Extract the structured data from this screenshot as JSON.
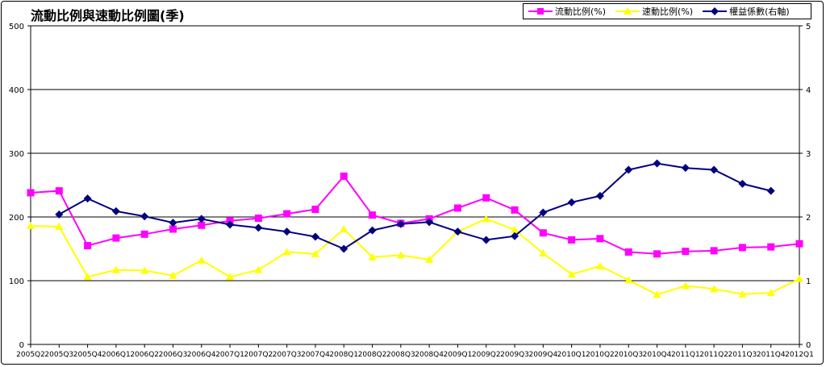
{
  "chart_data": {
    "type": "line",
    "title": "流動比例與速動比例圖(季)",
    "categories": [
      "2005Q2",
      "2005Q3",
      "2005Q4",
      "2006Q1",
      "2006Q2",
      "2006Q3",
      "2006Q4",
      "2007Q1",
      "2007Q2",
      "2007Q3",
      "2007Q4",
      "2008Q1",
      "2008Q2",
      "2008Q3",
      "2008Q4",
      "2009Q1",
      "2009Q2",
      "2009Q3",
      "2009Q4",
      "2010Q1",
      "2010Q2",
      "2010Q3",
      "2010Q4",
      "2011Q1",
      "2011Q2",
      "2011Q3",
      "2011Q4",
      "2012Q1"
    ],
    "y_left": {
      "min": 0,
      "max": 500,
      "ticks": [
        "0",
        "100",
        "200",
        "300",
        "400",
        "500"
      ]
    },
    "y_right": {
      "min": 0,
      "max": 5,
      "ticks": [
        "0",
        "1",
        "2",
        "3",
        "4",
        "5"
      ]
    },
    "grid": true,
    "legend_position": "top-right",
    "series": [
      {
        "name": "流動比例(%)",
        "axis": "left",
        "color": "#ff00ff",
        "marker": "square",
        "values": [
          238,
          241,
          155,
          167,
          173,
          181,
          187,
          194,
          198,
          205,
          212,
          264,
          203,
          190,
          197,
          214,
          230,
          211,
          175,
          164,
          166,
          145,
          142,
          146,
          147,
          152,
          153,
          158
        ]
      },
      {
        "name": "速動比例(%)",
        "axis": "left",
        "color": "#ffff00",
        "marker": "triangle",
        "values": [
          186,
          185,
          106,
          117,
          116,
          108,
          132,
          106,
          117,
          145,
          142,
          181,
          137,
          140,
          133,
          177,
          197,
          180,
          143,
          110,
          123,
          101,
          78,
          92,
          87,
          79,
          81,
          103
        ]
      },
      {
        "name": "權益係數(右軸)",
        "axis": "right",
        "color": "#000080",
        "marker": "diamond",
        "values": [
          null,
          2.04,
          2.29,
          2.09,
          2.01,
          1.91,
          1.97,
          1.88,
          1.83,
          1.77,
          1.69,
          1.5,
          1.79,
          1.89,
          1.92,
          1.77,
          1.64,
          1.7,
          2.07,
          2.23,
          2.33,
          2.74,
          2.84,
          2.77,
          2.74,
          2.52,
          2.41,
          null
        ]
      }
    ]
  }
}
